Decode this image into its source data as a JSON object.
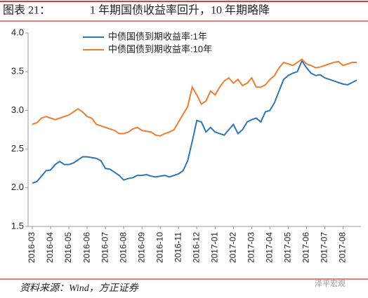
{
  "chart_data": {
    "type": "line",
    "figure_label": "图表 21：",
    "title": "1 年期国债收益率回升，10 年期略降",
    "source": "资料来源：Wind，方正证券",
    "watermark": "泽平宏观",
    "categories": [
      "2016-03",
      null,
      null,
      null,
      "2016-04",
      null,
      null,
      null,
      "2016-05",
      null,
      null,
      null,
      "2016-06",
      null,
      null,
      null,
      "2016-07",
      null,
      null,
      null,
      "2016-08",
      null,
      null,
      null,
      "2016-09",
      null,
      null,
      null,
      "2016-10",
      null,
      null,
      null,
      "2016-11",
      null,
      null,
      null,
      "2016-12",
      null,
      null,
      null,
      "2017-01",
      null,
      null,
      null,
      "2017-02",
      null,
      null,
      null,
      "2017-03",
      null,
      null,
      null,
      "2017-04",
      null,
      null,
      null,
      "2017-05",
      null,
      null,
      null,
      "2017-06",
      null,
      null,
      null,
      "2017-07",
      null,
      null,
      null,
      "2017-08",
      null,
      null,
      null
    ],
    "series": [
      {
        "name": "中债国债到期收益率:1年",
        "color": "#2e75b6",
        "values": [
          2.06,
          2.08,
          2.15,
          2.22,
          2.23,
          2.3,
          2.34,
          2.3,
          2.3,
          2.32,
          2.36,
          2.4,
          2.4,
          2.39,
          2.38,
          2.35,
          2.25,
          2.24,
          2.2,
          2.16,
          2.1,
          2.12,
          2.13,
          2.16,
          2.16,
          2.17,
          2.15,
          2.14,
          2.15,
          2.16,
          2.14,
          2.16,
          2.18,
          2.22,
          2.35,
          2.6,
          2.87,
          2.85,
          2.72,
          2.78,
          2.72,
          2.7,
          2.68,
          2.75,
          2.82,
          2.7,
          2.75,
          2.85,
          2.88,
          2.9,
          2.85,
          2.98,
          3.0,
          3.1,
          3.25,
          3.4,
          3.45,
          3.48,
          3.5,
          3.64,
          3.55,
          3.48,
          3.45,
          3.46,
          3.42,
          3.4,
          3.38,
          3.36,
          3.34,
          3.33,
          3.36,
          3.39
        ]
      },
      {
        "name": "中债国债到期收益率:10年",
        "color": "#ed7d31",
        "values": [
          2.82,
          2.84,
          2.9,
          2.92,
          2.9,
          2.88,
          2.9,
          2.92,
          2.94,
          2.98,
          3.02,
          2.98,
          2.92,
          2.9,
          2.82,
          2.8,
          2.78,
          2.76,
          2.74,
          2.7,
          2.7,
          2.72,
          2.76,
          2.78,
          2.74,
          2.73,
          2.72,
          2.68,
          2.67,
          2.7,
          2.72,
          2.75,
          2.85,
          2.95,
          3.05,
          3.3,
          3.2,
          3.08,
          3.12,
          3.25,
          3.2,
          3.3,
          3.38,
          3.42,
          3.35,
          3.4,
          3.32,
          3.35,
          3.42,
          3.3,
          3.3,
          3.33,
          3.4,
          3.45,
          3.55,
          3.62,
          3.6,
          3.58,
          3.62,
          3.66,
          3.6,
          3.58,
          3.55,
          3.56,
          3.58,
          3.6,
          3.62,
          3.63,
          3.58,
          3.6,
          3.62,
          3.62
        ]
      }
    ],
    "ylim": [
      1.5,
      4.0
    ],
    "yticks": [
      {
        "value": 1.5,
        "label": "1.5"
      },
      {
        "value": 2,
        "label": "2.0"
      },
      {
        "value": 2.5,
        "label": "2.5"
      },
      {
        "value": 3,
        "label": "3.0"
      },
      {
        "value": 3.5,
        "label": "3.5"
      },
      {
        "value": 4,
        "label": "4.0"
      }
    ],
    "grid": false,
    "legend": "top-left"
  }
}
